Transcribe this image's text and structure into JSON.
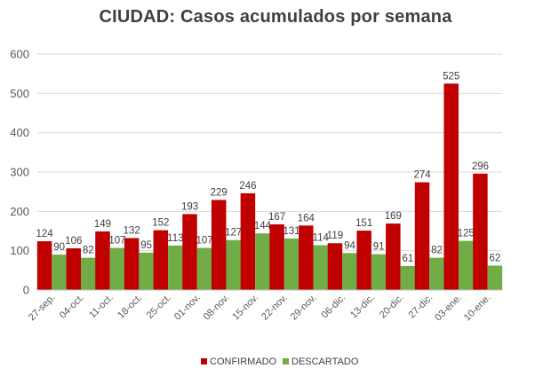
{
  "chart_data": {
    "type": "bar",
    "title": "CIUDAD: Casos acumulados  por semana",
    "xlabel": "",
    "ylabel": "",
    "ylim": [
      0,
      600
    ],
    "yticks": [
      0,
      100,
      200,
      300,
      400,
      500,
      600
    ],
    "grid": true,
    "legend_position": "bottom",
    "categories": [
      "27-sep.",
      "04-oct.",
      "11-oct.",
      "18-oct.",
      "25-oct.",
      "01-nov.",
      "08-nov.",
      "15-nov.",
      "22-nov.",
      "29-nov.",
      "06-dic.",
      "13-dic.",
      "20-dic.",
      "27-dic.",
      "03-ene.",
      "10-ene."
    ],
    "series": [
      {
        "name": "CONFIRMADO",
        "color": "#c00000",
        "values": [
          124,
          106,
          149,
          132,
          152,
          193,
          229,
          246,
          167,
          164,
          119,
          151,
          169,
          274,
          525,
          296
        ]
      },
      {
        "name": "DESCARTADO",
        "color": "#70ad47",
        "values": [
          90,
          82,
          107,
          95,
          113,
          107,
          127,
          144,
          131,
          114,
          94,
          91,
          61,
          82,
          125,
          62
        ]
      }
    ]
  }
}
